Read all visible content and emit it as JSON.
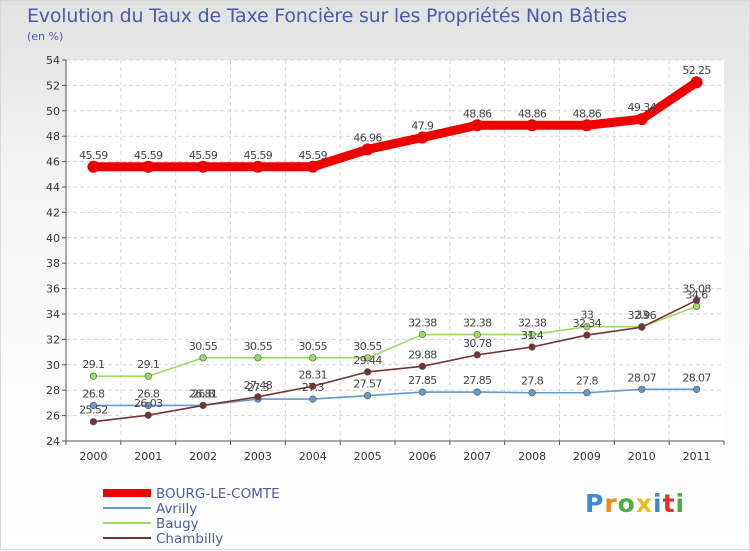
{
  "title": "Evolution du Taux de Taxe Foncière sur les Propriétés Non Bâties",
  "unit": "(en %)",
  "logo": "Proxiti",
  "chart_data": {
    "type": "line",
    "title": "Evolution du Taux de Taxe Foncière sur les Propriétés Non Bâties",
    "xlabel": "",
    "ylabel": "(en %)",
    "ylim": [
      24,
      54
    ],
    "yticks": [
      24,
      26,
      28,
      30,
      32,
      34,
      36,
      38,
      40,
      42,
      44,
      46,
      48,
      50,
      52,
      54
    ],
    "categories": [
      "2000",
      "2001",
      "2002",
      "2003",
      "2004",
      "2005",
      "2006",
      "2007",
      "2008",
      "2009",
      "2010",
      "2011"
    ],
    "grid": true,
    "legend_position": "bottom-left",
    "series": [
      {
        "name": "BOURG-LE-COMTE",
        "color": "#ee0000",
        "values": [
          45.59,
          45.59,
          45.59,
          45.59,
          45.59,
          46.96,
          47.9,
          48.86,
          48.86,
          48.86,
          49.34,
          52.25
        ],
        "labels": [
          "45.59",
          "45.59",
          "45.59",
          "45.59",
          "45.59",
          "46.96",
          "47.9",
          "48.86",
          "48.86",
          "48.86",
          "49.34",
          "52.25"
        ]
      },
      {
        "name": "Avrilly",
        "color": "#6699cc",
        "values": [
          26.8,
          26.8,
          26.81,
          27.3,
          27.3,
          27.57,
          27.85,
          27.85,
          27.8,
          27.8,
          28.07,
          28.07
        ],
        "labels": [
          "26.8",
          "26.8",
          "26.81",
          "27.3",
          "27.3",
          "27.57",
          "27.85",
          "27.85",
          "27.8",
          "27.8",
          "28.07",
          "28.07"
        ]
      },
      {
        "name": "Baugy",
        "color": "#99dd66",
        "values": [
          29.1,
          29.1,
          30.55,
          30.55,
          30.55,
          30.55,
          32.38,
          32.38,
          32.38,
          33,
          33,
          34.6
        ],
        "labels": [
          "29.1",
          "29.1",
          "30.55",
          "30.55",
          "30.55",
          "30.55",
          "32.38",
          "32.38",
          "32.38",
          "33",
          "33",
          "34.6"
        ]
      },
      {
        "name": "Chambilly",
        "color": "#773333",
        "values": [
          25.52,
          26.03,
          26.8,
          27.48,
          28.31,
          29.44,
          29.88,
          30.78,
          31.4,
          32.34,
          32.96,
          35.08
        ],
        "labels": [
          "25.52",
          "26.03",
          "26.8",
          "27.48",
          "28.31",
          "29.44",
          "29.88",
          "30.78",
          "31.4",
          "32.34",
          "32.96",
          "35.08"
        ]
      }
    ]
  }
}
